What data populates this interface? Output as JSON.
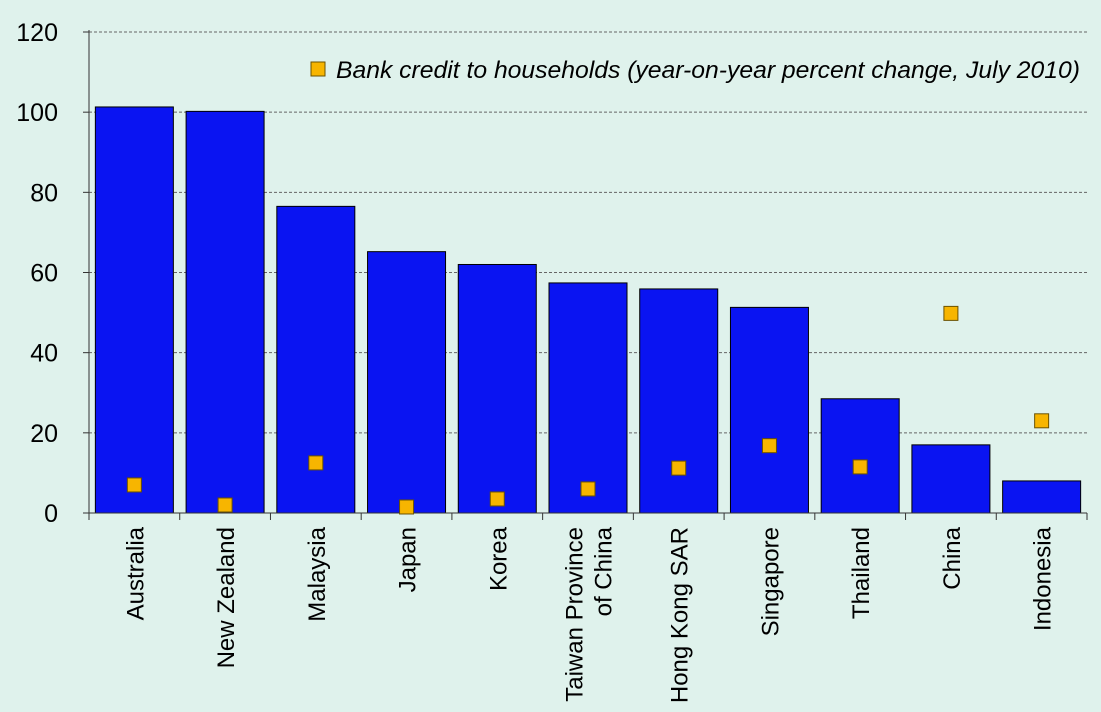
{
  "chart_data": {
    "type": "bar",
    "categories": [
      "Australia",
      "New Zealand",
      "Malaysia",
      "Japan",
      "Korea",
      "Taiwan Province of China",
      "Hong Kong SAR",
      "Singapore",
      "Thailand",
      "China",
      "Indonesia"
    ],
    "category_labels": [
      [
        "Australia"
      ],
      [
        "New Zealand"
      ],
      [
        "Malaysia"
      ],
      [
        "Japan"
      ],
      [
        "Korea"
      ],
      [
        "Taiwan Province",
        "of China"
      ],
      [
        "Hong Kong SAR"
      ],
      [
        "Singapore"
      ],
      [
        "Thailand"
      ],
      [
        "China"
      ],
      [
        "Indonesia"
      ]
    ],
    "series": [
      {
        "values": [
          101.3,
          100.2,
          76.5,
          65.2,
          62.0,
          57.4,
          55.9,
          51.3,
          28.5,
          17.0,
          8.0
        ],
        "color": "#0a14f2",
        "mark": "bar"
      },
      {
        "name": "Bank credit to households (year-on-year percent change, July 2010)",
        "values": [
          7.0,
          2.0,
          12.5,
          1.5,
          3.5,
          6.0,
          11.2,
          16.8,
          11.5,
          49.8,
          23.0
        ],
        "color": "#f7b500",
        "mark": "square"
      }
    ],
    "ylim": [
      0,
      120
    ],
    "yticks": [
      0,
      20,
      40,
      60,
      80,
      100,
      120
    ],
    "grid": true,
    "legend_position": "top-right",
    "colors": {
      "background": "#dff2ec",
      "grid": "#666666",
      "axis": "#333333"
    }
  }
}
